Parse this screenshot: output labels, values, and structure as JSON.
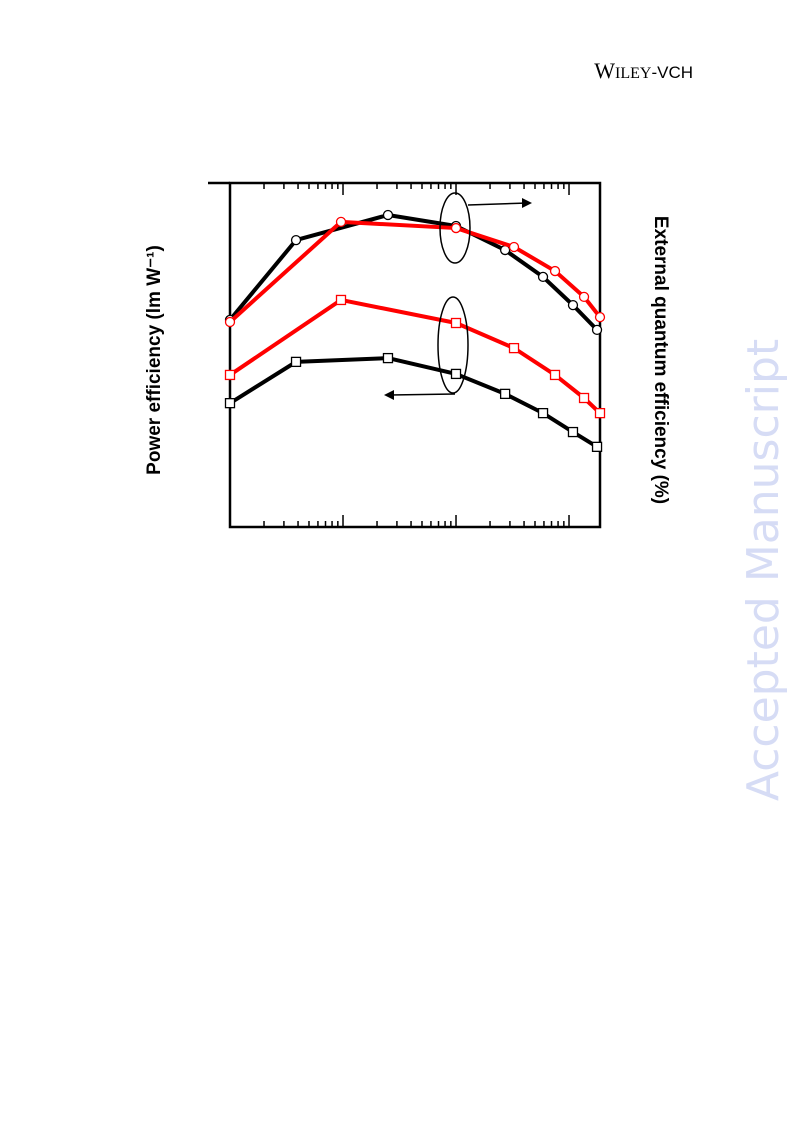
{
  "header": {
    "publisher_main": "W",
    "publisher_small": "ILEY",
    "publisher_suffix": "-VCH"
  },
  "watermark": "Accepted Manuscript",
  "chart_data": {
    "type": "line",
    "y_label": "Power efficiency (lm W⁻¹)",
    "y2_label": "External quantum efficiency (%)",
    "xlim": [
      1,
      1880
    ],
    "xscale": "log",
    "ylim": [
      0,
      100
    ],
    "y2lim": [
      0,
      100
    ],
    "series": [
      {
        "color": "#000000",
        "marker": "square",
        "axis": "y",
        "x": [
          1,
          3.84,
          25,
          100,
          272,
          589,
          1084,
          1770
        ],
        "values": [
          36.0,
          48.0,
          49.1,
          44.5,
          38.7,
          33.1,
          27.6,
          23.3
        ]
      },
      {
        "color": "#ff0000",
        "marker": "square",
        "axis": "y",
        "x": [
          1,
          9.6,
          100,
          326,
          752,
          1358,
          1880
        ],
        "values": [
          44.2,
          66.0,
          59.3,
          52.0,
          44.2,
          37.5,
          33.1
        ]
      },
      {
        "color": "#000000",
        "marker": "circle",
        "axis": "y2",
        "x": [
          1,
          3.84,
          25,
          100,
          272,
          589,
          1084,
          1770
        ],
        "values": [
          60.2,
          83.4,
          90.7,
          87.5,
          80.5,
          72.7,
          64.5,
          57.3
        ]
      },
      {
        "color": "#ff0000",
        "marker": "circle",
        "axis": "y2",
        "x": [
          1,
          9.6,
          100,
          326,
          752,
          1358,
          1880
        ],
        "values": [
          59.6,
          88.7,
          86.9,
          81.4,
          74.4,
          66.9,
          61.0
        ]
      }
    ]
  }
}
